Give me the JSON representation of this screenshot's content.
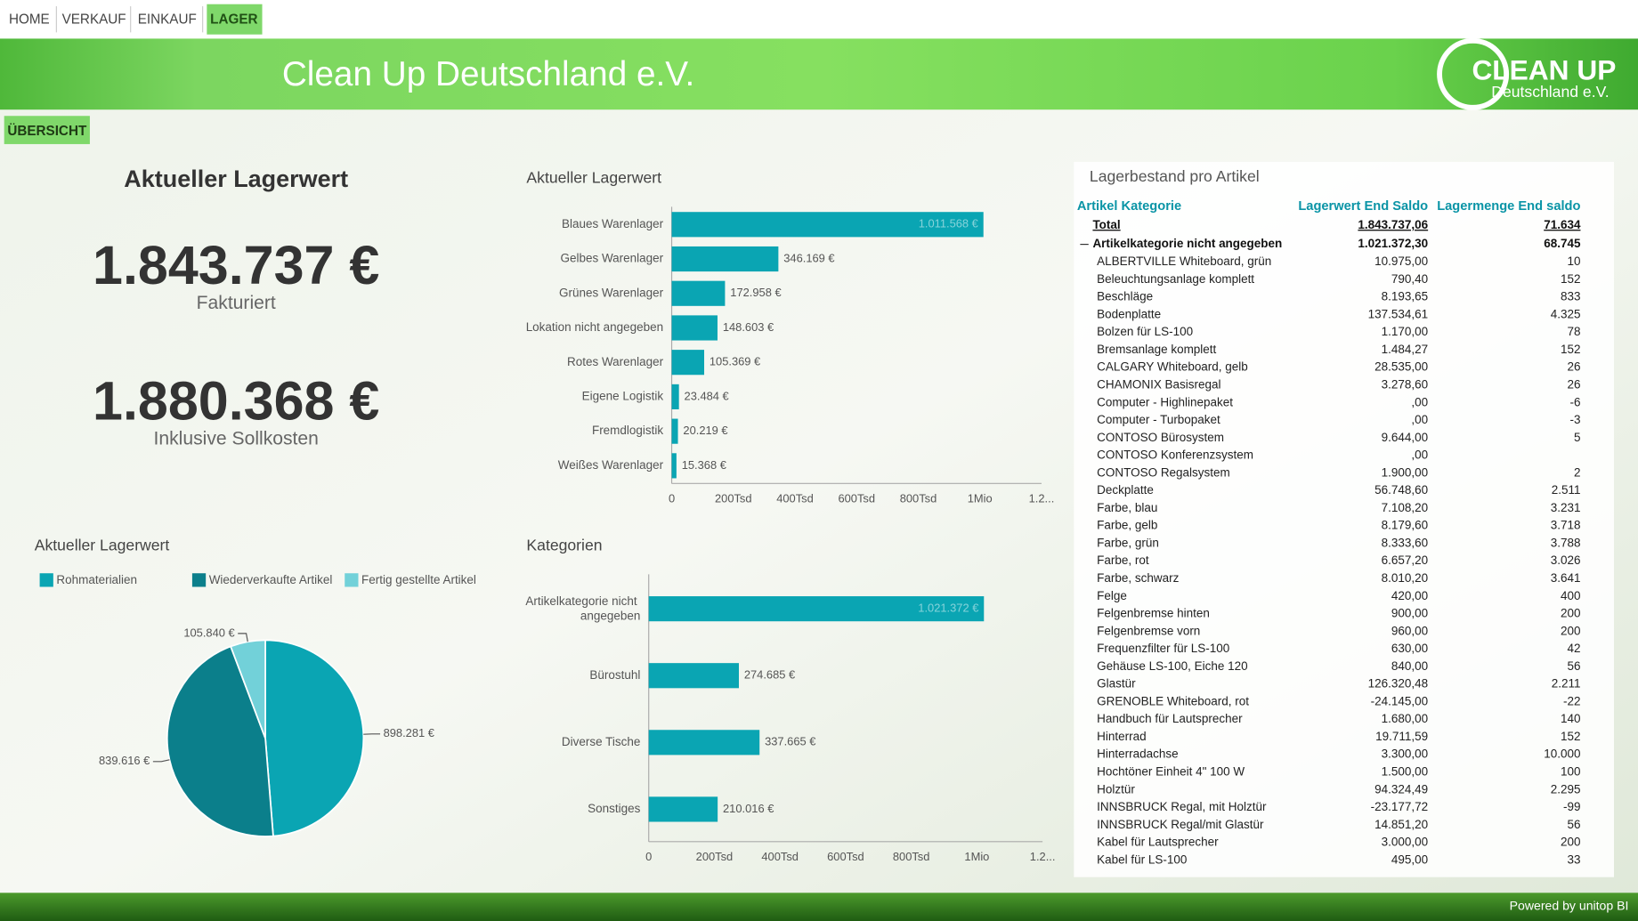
{
  "nav": [
    "HOME",
    "VERKAUF",
    "EINKAUF",
    "LAGER"
  ],
  "header": {
    "title": "Clean Up Deutschland e.V.",
    "logo_title": "CLEAN UP",
    "logo_subtitle": "Deutschland e.V."
  },
  "button": "ÜBERSICHT",
  "kpi": {
    "title": "Aktueller Lagerwert",
    "items": [
      {
        "value": "1.843.737 €",
        "label": "Fakturiert"
      },
      {
        "value": "1.880.368 €",
        "label": "Inklusive Sollkosten"
      }
    ]
  },
  "chart_data": [
    {
      "type": "bar",
      "title": "Aktueller Lagerwert",
      "color": "#0aa5b3",
      "categories": [
        "Blaues Warenlager",
        "Gelbes Warenlager",
        "Grünes Warenlager",
        "Lokation nicht angegeben",
        "Rotes Warenlager",
        "Eigene Logistik",
        "Fremdlogistik",
        "Weißes Warenlager"
      ],
      "values": [
        1011568,
        346169,
        172958,
        148603,
        105369,
        23484,
        20219,
        15368
      ],
      "value_labels": [
        "1.011.568 €",
        "346.169 €",
        "172.958 €",
        "148.603 €",
        "105.369 €",
        "23.484 €",
        "20.219 €",
        "15.368 €"
      ],
      "xlim": [
        0,
        1200000
      ],
      "xticks": [
        0,
        {
          "value": 200000,
          "label": "200Tsd"
        },
        {
          "value": 400000,
          "label": "400Tsd"
        },
        {
          "value": 600000,
          "label": "600Tsd"
        },
        {
          "value": 800000,
          "label": "800Tsd"
        },
        {
          "value": 1000000,
          "label": "1Mio"
        },
        {
          "value": 1200000,
          "label": "1.2..."
        }
      ]
    },
    {
      "type": "pie",
      "title": "Aktueller Lagerwert",
      "categories": [
        "Rohmaterialien",
        "Wiederverkaufte Artikel",
        "Fertig gestellte Artikel"
      ],
      "colors": [
        "#0aa5b3",
        "#0b7f8b",
        "#72d1d9"
      ],
      "values": [
        898281,
        839616,
        105840
      ],
      "value_labels": [
        "898.281 €",
        "839.616 €",
        "105.840 €"
      ]
    },
    {
      "type": "bar",
      "title": "Kategorien",
      "color": "#0aa5b3",
      "categories": [
        "Artikelkategorie nicht angegeben",
        "Bürostuhl",
        "Diverse Tische",
        "Sonstiges"
      ],
      "values": [
        1021372,
        274685,
        337665,
        210016
      ],
      "value_labels": [
        "1.021.372 €",
        "274.685 €",
        "337.665 €",
        "210.016 €"
      ],
      "xlim": [
        0,
        1200000
      ],
      "xticks": [
        0,
        {
          "value": 200000,
          "label": "200Tsd"
        },
        {
          "value": 400000,
          "label": "400Tsd"
        },
        {
          "value": 600000,
          "label": "600Tsd"
        },
        {
          "value": 800000,
          "label": "800Tsd"
        },
        {
          "value": 1000000,
          "label": "1Mio"
        },
        {
          "value": 1200000,
          "label": "1.2..."
        }
      ]
    }
  ],
  "table": {
    "title": "Lagerbestand pro Artikel",
    "columns": [
      "Artikel Kategorie",
      "Lagerwert End Saldo",
      "Lagermenge End saldo"
    ],
    "total": [
      "Total",
      "1.843.737,06",
      "71.634"
    ],
    "group": [
      "Artikelkategorie nicht angegeben",
      "1.021.372,30",
      "68.745"
    ],
    "rows": [
      [
        "ALBERTVILLE Whiteboard, grün",
        "10.975,00",
        "10"
      ],
      [
        "Beleuchtungsanlage komplett",
        "790,40",
        "152"
      ],
      [
        "Beschläge",
        "8.193,65",
        "833"
      ],
      [
        "Bodenplatte",
        "137.534,61",
        "4.325"
      ],
      [
        "Bolzen für LS-100",
        "1.170,00",
        "78"
      ],
      [
        "Bremsanlage komplett",
        "1.484,27",
        "152"
      ],
      [
        "CALGARY Whiteboard, gelb",
        "28.535,00",
        "26"
      ],
      [
        "CHAMONIX Basisregal",
        "3.278,60",
        "26"
      ],
      [
        "Computer - Highlinepaket",
        ",00",
        "-6"
      ],
      [
        "Computer - Turbopaket",
        ",00",
        "-3"
      ],
      [
        "CONTOSO Bürosystem",
        "9.644,00",
        "5"
      ],
      [
        "CONTOSO Konferenzsystem",
        ",00",
        null
      ],
      [
        "CONTOSO Regalsystem",
        "1.900,00",
        "2"
      ],
      [
        "Deckplatte",
        "56.748,60",
        "2.511"
      ],
      [
        "Farbe, blau",
        "7.108,20",
        "3.231"
      ],
      [
        "Farbe, gelb",
        "8.179,60",
        "3.718"
      ],
      [
        "Farbe, grün",
        "8.333,60",
        "3.788"
      ],
      [
        "Farbe, rot",
        "6.657,20",
        "3.026"
      ],
      [
        "Farbe, schwarz",
        "8.010,20",
        "3.641"
      ],
      [
        "Felge",
        "420,00",
        "400"
      ],
      [
        "Felgenbremse hinten",
        "900,00",
        "200"
      ],
      [
        "Felgenbremse vorn",
        "960,00",
        "200"
      ],
      [
        "Frequenzfilter für LS-100",
        "630,00",
        "42"
      ],
      [
        "Gehäuse LS-100, Eiche 120",
        "840,00",
        "56"
      ],
      [
        "Glastür",
        "126.320,48",
        "2.211"
      ],
      [
        "GRENOBLE Whiteboard, rot",
        "-24.145,00",
        "-22"
      ],
      [
        "Handbuch für Lautsprecher",
        "1.680,00",
        "140"
      ],
      [
        "Hinterrad",
        "19.711,59",
        "152"
      ],
      [
        "Hinterradachse",
        "3.300,00",
        "10.000"
      ],
      [
        "Hochtöner Einheit 4\" 100 W",
        "1.500,00",
        "100"
      ],
      [
        "Holztür",
        "94.324,49",
        "2.295"
      ],
      [
        "INNSBRUCK Regal, mit Holztür",
        "-23.177,72",
        "-99"
      ],
      [
        "INNSBRUCK Regal/mit Glastür",
        "14.851,20",
        "56"
      ],
      [
        "Kabel für Lautsprecher",
        "3.000,00",
        "200"
      ],
      [
        "Kabel für LS-100",
        "495,00",
        "33"
      ]
    ]
  },
  "footer": "Powered by unitop BI"
}
